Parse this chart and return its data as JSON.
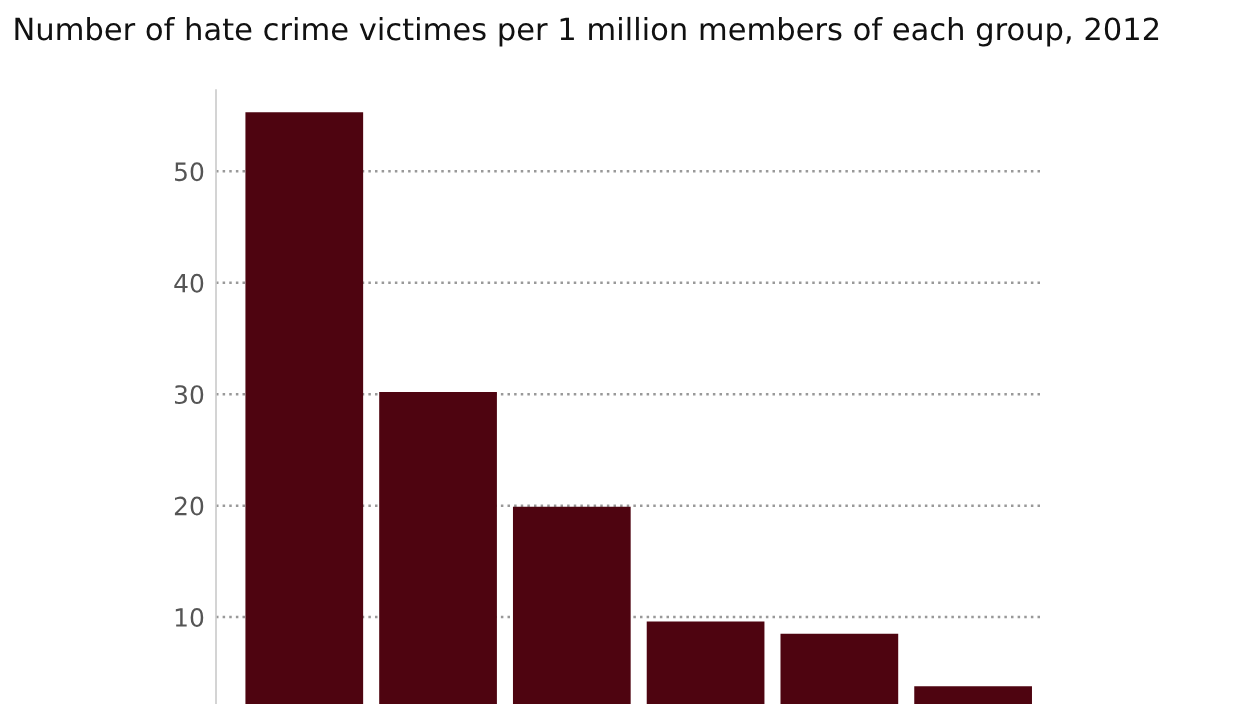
{
  "chart_data": {
    "type": "bar",
    "title": "Number of hate crime victimes per 1 million members of each group, 2012",
    "categories": [
      null,
      null,
      null,
      null,
      null,
      null
    ],
    "values": [
      55.3,
      30.2,
      19.9,
      9.6,
      8.5,
      3.8
    ],
    "color": "#4e0410",
    "ylim": [
      2.2,
      57.3
    ],
    "yticks": [
      10,
      20,
      30,
      40,
      50
    ],
    "grid": "y",
    "line_style": "dotted"
  }
}
